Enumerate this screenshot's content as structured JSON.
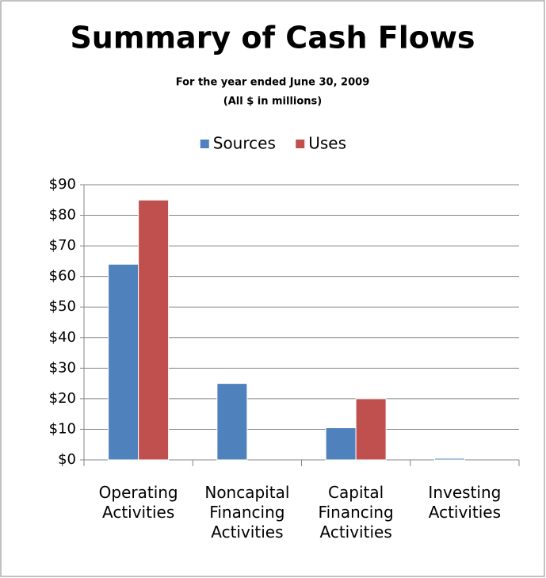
{
  "chart_data": {
    "type": "bar",
    "title": "Summary of Cash Flows",
    "subtitle": [
      "For the year ended June 30, 2009",
      "(All $ in millions)"
    ],
    "categories": [
      "Operating Activities",
      "Noncapital Financing Activities",
      "Capital Financing Activities",
      "Investing Activities"
    ],
    "series": [
      {
        "name": "Sources",
        "color": "#4f81bd",
        "values": [
          64,
          25,
          10.5,
          0.5
        ]
      },
      {
        "name": "Uses",
        "color": "#c0504d",
        "values": [
          85,
          0,
          20,
          0
        ]
      }
    ],
    "ylim": [
      0,
      90
    ],
    "yticks": [
      {
        "value": 0,
        "label": "$0"
      },
      {
        "value": 10,
        "label": "$10"
      },
      {
        "value": 20,
        "label": "$20"
      },
      {
        "value": 30,
        "label": "$30"
      },
      {
        "value": 40,
        "label": "$40"
      },
      {
        "value": 50,
        "label": "$50"
      },
      {
        "value": 60,
        "label": "$60"
      },
      {
        "value": 70,
        "label": "$70"
      },
      {
        "value": 80,
        "label": "$80"
      },
      {
        "value": 90,
        "label": "$90"
      }
    ],
    "grid": true,
    "legend": "top"
  }
}
